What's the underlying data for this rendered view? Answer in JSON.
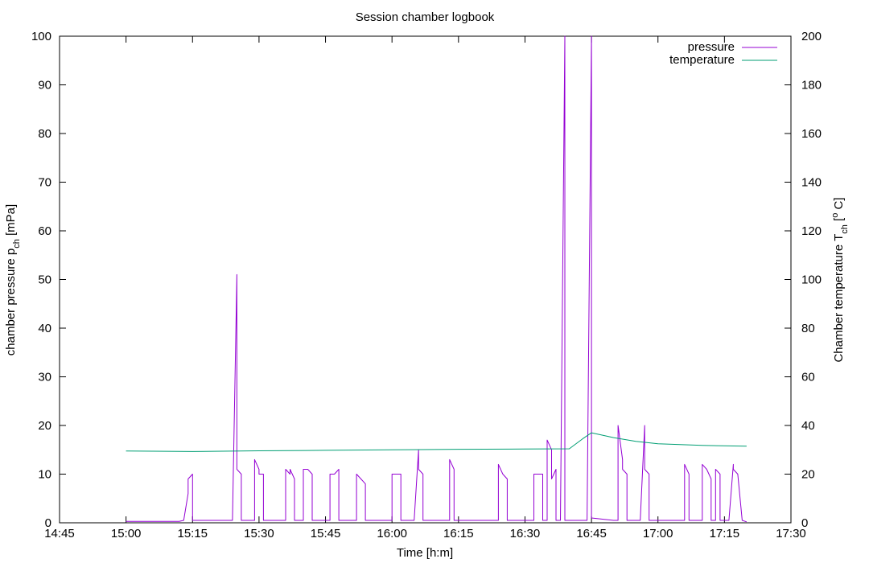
{
  "chart_data": {
    "type": "line",
    "title": "Session chamber logbook",
    "xlabel": "Time [h:m]",
    "ylabel": {
      "main": "chamber pressure p",
      "sub": "ch",
      "unit": " [mPa]"
    },
    "y2label": {
      "main": "Chamber temperature T",
      "sub": "ch",
      "unit_pre": " [",
      "unit_sup": "o",
      "unit_post": " C]"
    },
    "x_tick_labels": [
      "14:45",
      "15:00",
      "15:15",
      "15:30",
      "15:45",
      "16:00",
      "16:15",
      "16:30",
      "16:45",
      "17:00",
      "17:15",
      "17:30"
    ],
    "xlim_minutes": [
      885,
      1050
    ],
    "ylim": [
      0,
      100
    ],
    "y_ticks": [
      0,
      10,
      20,
      30,
      40,
      50,
      60,
      70,
      80,
      90,
      100
    ],
    "y2lim": [
      0,
      200
    ],
    "y2_ticks": [
      0,
      20,
      40,
      60,
      80,
      100,
      120,
      140,
      160,
      180,
      200
    ],
    "grid": false,
    "legend_position": "top-right",
    "colors": {
      "pressure": "#9400d3",
      "temperature": "#009e73"
    },
    "series": [
      {
        "name": "pressure",
        "axis": "left",
        "points": [
          [
            "15:00",
            0.3
          ],
          [
            "15:12",
            0.3
          ],
          [
            "15:13",
            0.5
          ],
          [
            "15:14",
            6
          ],
          [
            "15:14",
            9
          ],
          [
            "15:15",
            10
          ],
          [
            "15:15",
            0.5
          ],
          [
            "15:24",
            0.5
          ],
          [
            "15:25",
            51
          ],
          [
            "15:25",
            19
          ],
          [
            "15:25",
            11
          ],
          [
            "15:26",
            10
          ],
          [
            "15:26",
            9.5
          ],
          [
            "15:26",
            0.5
          ],
          [
            "15:29",
            0.5
          ],
          [
            "15:29",
            13
          ],
          [
            "15:30",
            11
          ],
          [
            "15:30",
            10
          ],
          [
            "15:31",
            10
          ],
          [
            "15:31",
            0.5
          ],
          [
            "15:36",
            0.5
          ],
          [
            "15:36",
            11
          ],
          [
            "15:37",
            10
          ],
          [
            "15:37",
            11
          ],
          [
            "15:38",
            9
          ],
          [
            "15:38",
            0.5
          ],
          [
            "15:40",
            0.5
          ],
          [
            "15:40",
            11
          ],
          [
            "15:41",
            11
          ],
          [
            "15:42",
            10
          ],
          [
            "15:42",
            0.5
          ],
          [
            "15:46",
            0.5
          ],
          [
            "15:46",
            10
          ],
          [
            "15:47",
            10
          ],
          [
            "15:48",
            11
          ],
          [
            "15:48",
            0.5
          ],
          [
            "15:52",
            0.5
          ],
          [
            "15:52",
            10
          ],
          [
            "15:53",
            9
          ],
          [
            "15:54",
            8
          ],
          [
            "15:54",
            0.5
          ],
          [
            "16:00",
            0.5
          ],
          [
            "16:00",
            10
          ],
          [
            "16:01",
            10
          ],
          [
            "16:02",
            10
          ],
          [
            "16:02",
            0.5
          ],
          [
            "16:05",
            0.5
          ],
          [
            "16:06",
            15
          ],
          [
            "16:06",
            11
          ],
          [
            "16:07",
            10
          ],
          [
            "16:07",
            0.5
          ],
          [
            "16:13",
            0.5
          ],
          [
            "16:13",
            13
          ],
          [
            "16:14",
            11
          ],
          [
            "16:14",
            10
          ],
          [
            "16:14",
            0.5
          ],
          [
            "16:24",
            0.5
          ],
          [
            "16:24",
            12
          ],
          [
            "16:25",
            10
          ],
          [
            "16:26",
            9
          ],
          [
            "16:26",
            0.5
          ],
          [
            "16:32",
            0.5
          ],
          [
            "16:32",
            10
          ],
          [
            "16:33",
            10
          ],
          [
            "16:34",
            10
          ],
          [
            "16:34",
            0.5
          ],
          [
            "16:35",
            0.5
          ],
          [
            "16:35",
            17
          ],
          [
            "16:36",
            15
          ],
          [
            "16:36",
            9
          ],
          [
            "16:37",
            11
          ],
          [
            "16:37",
            0.5
          ],
          [
            "16:38",
            0.5
          ],
          [
            "16:39",
            100
          ],
          [
            "16:39",
            0.5
          ],
          [
            "16:44",
            0.5
          ],
          [
            "16:45",
            100
          ],
          [
            "16:45",
            6
          ],
          [
            "16:45",
            1
          ],
          [
            "16:50",
            0.5
          ],
          [
            "16:51",
            0.5
          ],
          [
            "16:51",
            20
          ],
          [
            "16:52",
            13
          ],
          [
            "16:52",
            11
          ],
          [
            "16:53",
            10
          ],
          [
            "16:53",
            0.5
          ],
          [
            "16:56",
            0.5
          ],
          [
            "16:57",
            20
          ],
          [
            "16:57",
            11
          ],
          [
            "16:58",
            10
          ],
          [
            "16:58",
            0.5
          ],
          [
            "17:06",
            0.5
          ],
          [
            "17:06",
            12
          ],
          [
            "17:07",
            10
          ],
          [
            "17:07",
            0.5
          ],
          [
            "17:10",
            0.5
          ],
          [
            "17:10",
            12
          ],
          [
            "17:11",
            11
          ],
          [
            "17:12",
            9
          ],
          [
            "17:12",
            0.5
          ],
          [
            "17:13",
            0.5
          ],
          [
            "17:13",
            11
          ],
          [
            "17:14",
            10
          ],
          [
            "17:14",
            0.5
          ],
          [
            "17:16",
            0.5
          ],
          [
            "17:17",
            12
          ],
          [
            "17:17",
            11
          ],
          [
            "17:18",
            10
          ],
          [
            "17:19",
            0.5
          ],
          [
            "17:20",
            0.2
          ]
        ]
      },
      {
        "name": "temperature",
        "axis": "right",
        "points": [
          [
            "15:00",
            29.5
          ],
          [
            "15:15",
            29.3
          ],
          [
            "15:30",
            29.6
          ],
          [
            "15:45",
            29.8
          ],
          [
            "16:00",
            30.0
          ],
          [
            "16:15",
            30.2
          ],
          [
            "16:30",
            30.3
          ],
          [
            "16:40",
            30.4
          ],
          [
            "16:43",
            34.5
          ],
          [
            "16:45",
            37.0
          ],
          [
            "16:50",
            35.0
          ],
          [
            "16:55",
            33.5
          ],
          [
            "17:00",
            32.5
          ],
          [
            "17:10",
            31.8
          ],
          [
            "17:20",
            31.5
          ]
        ]
      }
    ]
  }
}
